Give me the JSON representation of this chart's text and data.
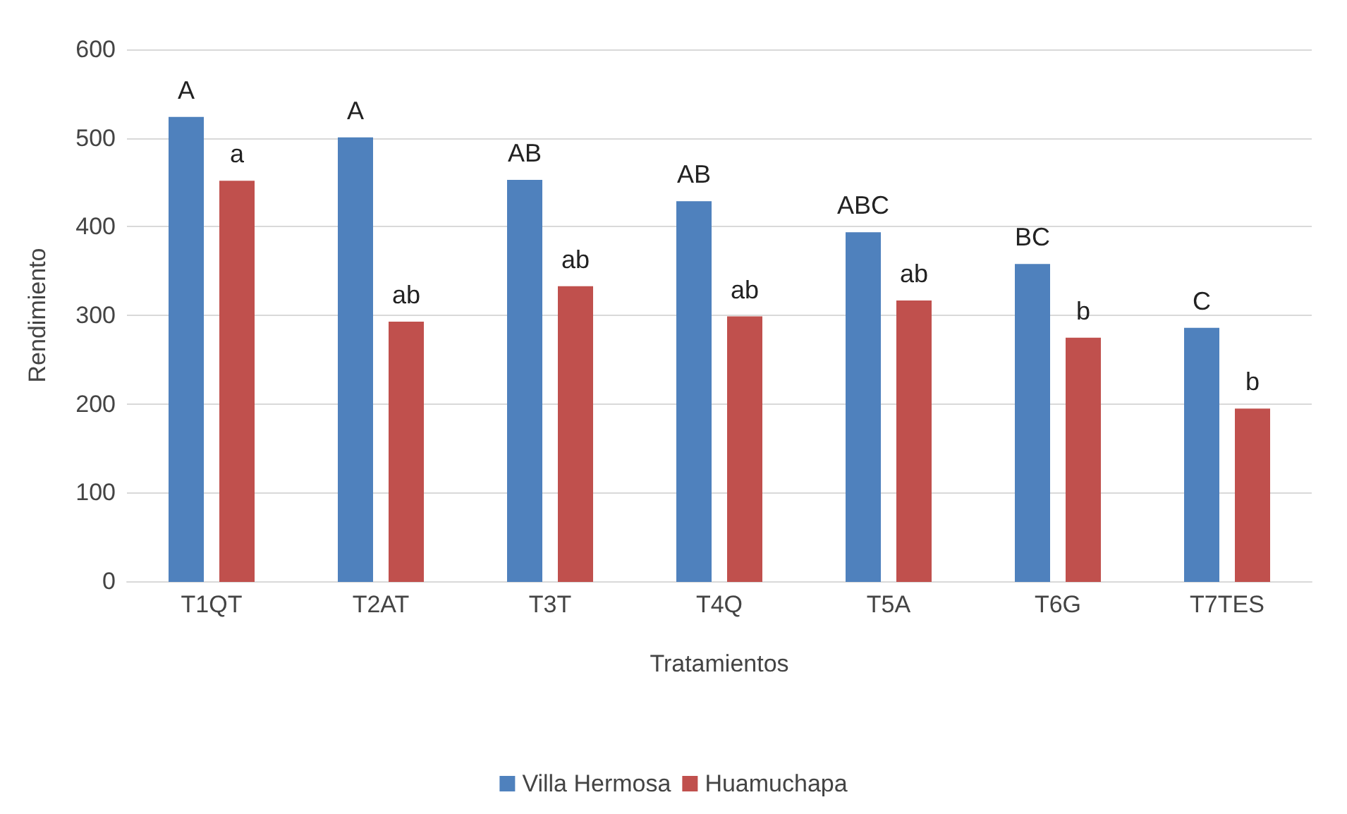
{
  "chart_data": {
    "type": "bar",
    "xlabel": "Tratamientos",
    "ylabel": "Rendimiento",
    "categories": [
      "T1QT",
      "T2AT",
      "T3T",
      "T4Q",
      "T5A",
      "T6G",
      "T7TES"
    ],
    "series": [
      {
        "name": "Villa Hermosa",
        "color": "#4f81bd",
        "values": [
          523,
          500,
          452,
          428,
          393,
          357,
          285
        ],
        "value_labels": [
          "A",
          "A",
          "AB",
          "AB",
          "ABC",
          "BC",
          "C"
        ]
      },
      {
        "name": "Huamuchapa",
        "color": "#c0504d",
        "values": [
          451,
          292,
          332,
          298,
          316,
          274,
          194
        ],
        "value_labels": [
          "a",
          "ab",
          "ab",
          "ab",
          "ab",
          "b",
          "b"
        ]
      }
    ],
    "ylim": [
      0,
      600
    ],
    "yticks": [
      0,
      100,
      200,
      300,
      400,
      500,
      600
    ],
    "grid": "y",
    "legend": "bottom"
  }
}
